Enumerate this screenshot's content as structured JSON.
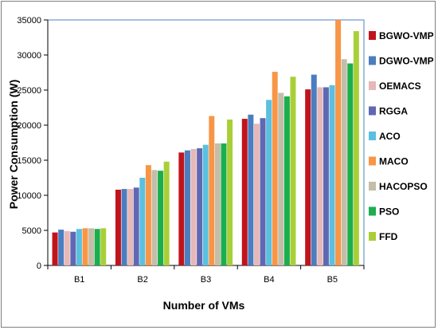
{
  "chart_data": {
    "type": "bar",
    "categories": [
      "B1",
      "B2",
      "B3",
      "B4",
      "B5"
    ],
    "xlabel": "Number of VMs",
    "ylabel": "Power Consumption (W)",
    "ylim": [
      0,
      35000
    ],
    "yticks": [
      0,
      5000,
      10000,
      15000,
      20000,
      25000,
      30000,
      35000
    ],
    "grid": false,
    "legend_position": "right",
    "series": [
      {
        "name": "BGWO-VMP",
        "color": "#c0141c",
        "values": [
          4700,
          10800,
          16100,
          20900,
          25100
        ]
      },
      {
        "name": "DGWO-VMP",
        "color": "#4a7ec0",
        "values": [
          5100,
          10900,
          16400,
          21500,
          27200
        ]
      },
      {
        "name": "OEMACS",
        "color": "#e6b8b7",
        "values": [
          4900,
          10900,
          16600,
          20200,
          25400
        ]
      },
      {
        "name": "RGGA",
        "color": "#6068b4",
        "values": [
          4800,
          11100,
          16700,
          21000,
          25400
        ]
      },
      {
        "name": "ACO",
        "color": "#5bc0e0",
        "values": [
          5200,
          12500,
          17200,
          23600,
          25700
        ]
      },
      {
        "name": "MACO",
        "color": "#f79646",
        "values": [
          5300,
          14300,
          21300,
          27600,
          35000
        ]
      },
      {
        "name": "HACOPSO",
        "color": "#c4bda8",
        "values": [
          5300,
          13600,
          17400,
          24600,
          29400
        ]
      },
      {
        "name": "PSO",
        "color": "#1aae4e",
        "values": [
          5200,
          13500,
          17400,
          24100,
          28800
        ]
      },
      {
        "name": "FFD",
        "color": "#a9cf38",
        "values": [
          5300,
          14800,
          20800,
          26900,
          33400
        ]
      }
    ]
  }
}
